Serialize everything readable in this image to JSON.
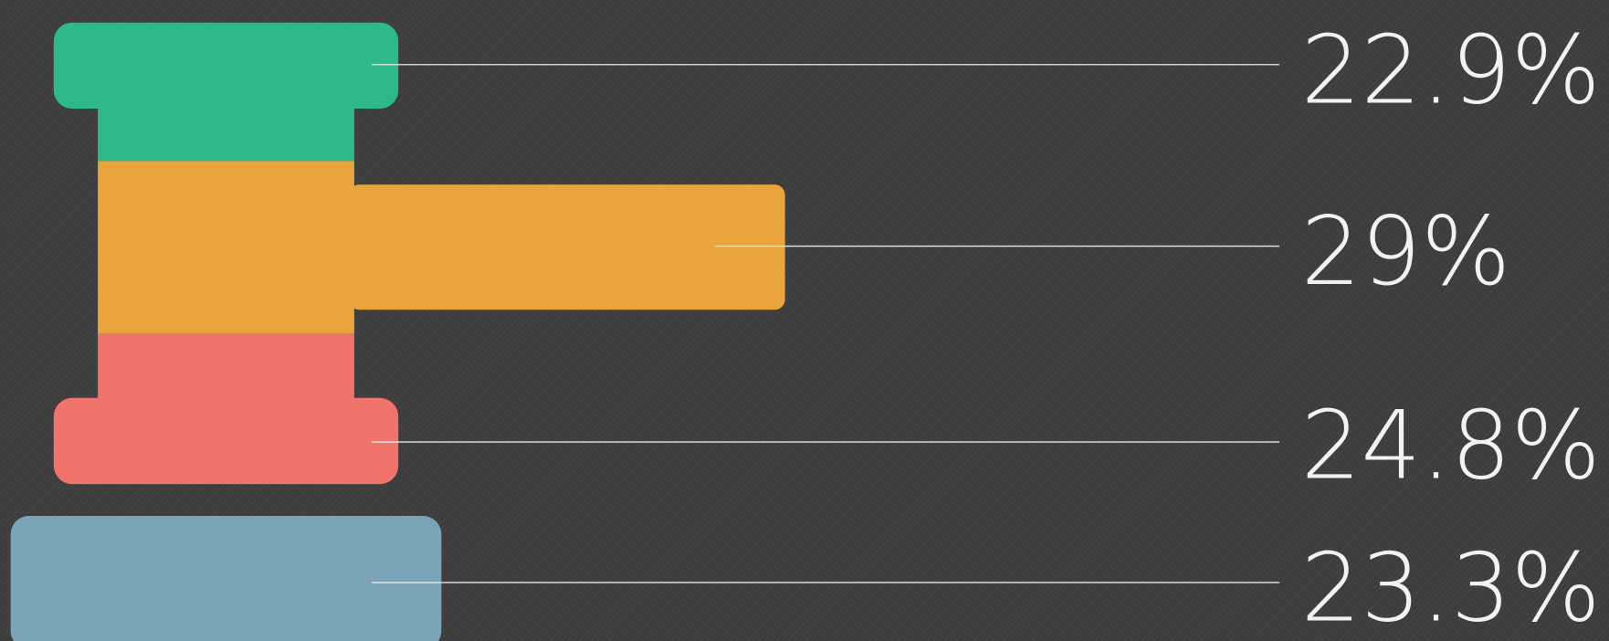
{
  "items": [
    {
      "label": "22.9%",
      "color": "#2db98b"
    },
    {
      "label": "29%",
      "color": "#e9a43d"
    },
    {
      "label": "24.8%",
      "color": "#f1746c"
    },
    {
      "label": "23.3%",
      "color": "#7ba5b6"
    }
  ]
}
